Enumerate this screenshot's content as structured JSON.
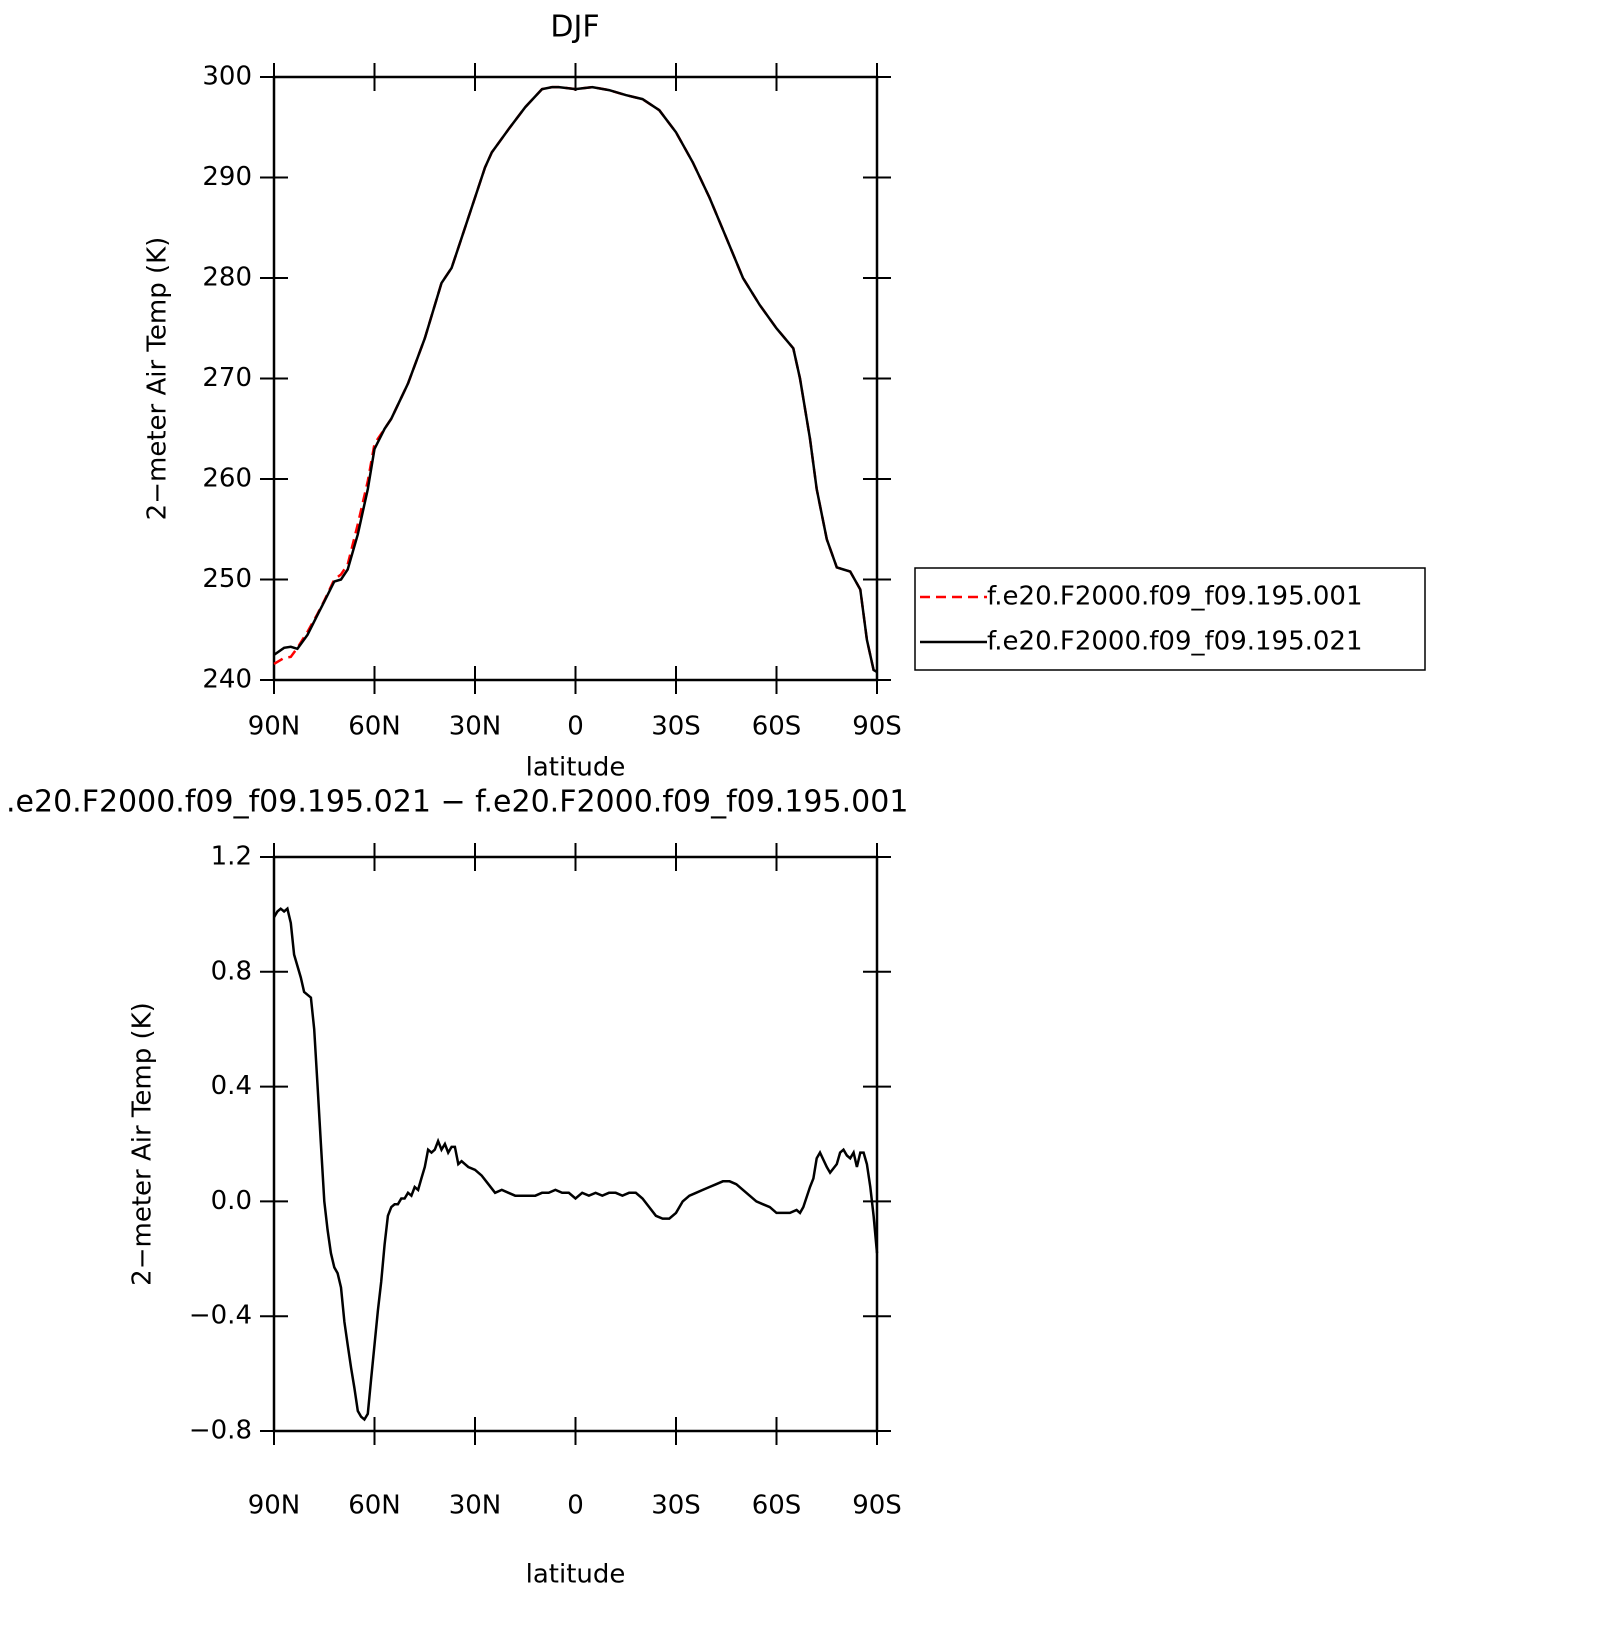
{
  "chart_data": [
    {
      "type": "line",
      "title": "DJF",
      "xlabel": "latitude",
      "ylabel": "2−meter Air Temp (K)",
      "xlim": [
        90,
        -90
      ],
      "xticks": [
        {
          "value": 90,
          "label": "90N"
        },
        {
          "value": 60,
          "label": "60N"
        },
        {
          "value": 30,
          "label": "30N"
        },
        0,
        {
          "value": -30,
          "label": "30S"
        },
        {
          "value": -60,
          "label": "60S"
        },
        {
          "value": -90,
          "label": "90S"
        }
      ],
      "ylim": [
        240,
        300
      ],
      "yticks": [
        240,
        250,
        260,
        270,
        280,
        290,
        300
      ],
      "legend": "right",
      "x": [
        90,
        87,
        85,
        83,
        80,
        77,
        75,
        72,
        70,
        68,
        65,
        62,
        60,
        57,
        55,
        50,
        45,
        40,
        37,
        35,
        30,
        27,
        25,
        20,
        15,
        10,
        7,
        5,
        0,
        -5,
        -10,
        -15,
        -20,
        -25,
        -30,
        -35,
        -40,
        -45,
        -50,
        -55,
        -60,
        -65,
        -67,
        -70,
        -72,
        -75,
        -78,
        -80,
        -82,
        -85,
        -87,
        -89,
        -90
      ],
      "series": [
        {
          "name": "f.e20.F2000.f09_f09.195.001",
          "color": "#ff0000",
          "linestyle": "dashed",
          "values": [
            241.6,
            242.2,
            242.3,
            243.2,
            244.8,
            246.6,
            247.9,
            250,
            250.5,
            251.5,
            255.5,
            259.8,
            263.5,
            265,
            266,
            269.5,
            274,
            279.5,
            281,
            283,
            288,
            291,
            292.5,
            294.8,
            297,
            298.8,
            299,
            299,
            298.8,
            299,
            298.7,
            298.2,
            297.8,
            296.7,
            294.5,
            291.5,
            288,
            284,
            280,
            277.3,
            275,
            273,
            270,
            264,
            259,
            254,
            251.2,
            251,
            250.8,
            249,
            244,
            241,
            240.8
          ]
        },
        {
          "name": "f.e20.F2000.f09_f09.195.021",
          "color": "#000000",
          "linestyle": "solid",
          "values": [
            242.5,
            243.2,
            243.3,
            243.1,
            244.5,
            246.5,
            247.8,
            249.8,
            250,
            251,
            254.5,
            259,
            263,
            265,
            266,
            269.5,
            274,
            279.5,
            281,
            283,
            288,
            291,
            292.5,
            294.8,
            297,
            298.8,
            299,
            299,
            298.8,
            299,
            298.7,
            298.2,
            297.8,
            296.7,
            294.5,
            291.5,
            288,
            284,
            280,
            277.3,
            275,
            273,
            270,
            264,
            259,
            254,
            251.2,
            251,
            250.8,
            249,
            244,
            241,
            240.8
          ]
        }
      ]
    },
    {
      "type": "line",
      "title": ".e20.F2000.f09_f09.195.021 − f.e20.F2000.f09_f09.195.001",
      "xlabel": "latitude",
      "ylabel": "2−meter Air Temp (K)",
      "xlim": [
        90,
        -90
      ],
      "xticks": [
        {
          "value": 90,
          "label": "90N"
        },
        {
          "value": 60,
          "label": "60N"
        },
        {
          "value": 30,
          "label": "30N"
        },
        0,
        {
          "value": -30,
          "label": "30S"
        },
        {
          "value": -60,
          "label": "60S"
        },
        {
          "value": -90,
          "label": "90S"
        }
      ],
      "ylim": [
        -0.8,
        1.2
      ],
      "yticks": [
        {
          "value": -0.8,
          "label": "−0.8"
        },
        {
          "value": -0.4,
          "label": "−0.4"
        },
        {
          "value": 0,
          "label": "0.0"
        },
        0.4,
        0.8,
        1.2
      ],
      "x": [
        90,
        89,
        88,
        87,
        86,
        85,
        84,
        82,
        81,
        79,
        78,
        77,
        76,
        75,
        74,
        73,
        72,
        71,
        70,
        69,
        68,
        67,
        66,
        65,
        64,
        63,
        62,
        61,
        60,
        59,
        58,
        57,
        56,
        55,
        54,
        53,
        52,
        51,
        50,
        49,
        48,
        47,
        46,
        45,
        44,
        43,
        42,
        41,
        40,
        39,
        38,
        37,
        36,
        35,
        34,
        33,
        32,
        30,
        28,
        26,
        24,
        22,
        20,
        18,
        16,
        14,
        12,
        10,
        8,
        6,
        4,
        2,
        0,
        -2,
        -4,
        -6,
        -8,
        -10,
        -12,
        -14,
        -16,
        -18,
        -20,
        -22,
        -24,
        -26,
        -28,
        -30,
        -32,
        -34,
        -36,
        -38,
        -40,
        -42,
        -44,
        -46,
        -48,
        -50,
        -52,
        -54,
        -56,
        -58,
        -60,
        -62,
        -64,
        -66,
        -67,
        -68,
        -70,
        -71,
        -72,
        -73,
        -75,
        -76,
        -78,
        -79,
        -80,
        -81,
        -82,
        -83,
        -84,
        -85,
        -86,
        -87,
        -88,
        -89,
        -90
      ],
      "series": [
        {
          "color": "#000000",
          "linestyle": "solid",
          "values": [
            0.99,
            1.01,
            1.02,
            1.01,
            1.02,
            0.97,
            0.86,
            0.78,
            0.73,
            0.71,
            0.6,
            0.4,
            0.2,
            0.0,
            -0.1,
            -0.18,
            -0.23,
            -0.25,
            -0.3,
            -0.42,
            -0.5,
            -0.58,
            -0.65,
            -0.73,
            -0.75,
            -0.76,
            -0.74,
            -0.62,
            -0.5,
            -0.38,
            -0.28,
            -0.15,
            -0.05,
            -0.02,
            -0.01,
            -0.01,
            0.01,
            0.01,
            0.03,
            0.02,
            0.05,
            0.04,
            0.08,
            0.12,
            0.18,
            0.17,
            0.18,
            0.21,
            0.18,
            0.2,
            0.17,
            0.19,
            0.19,
            0.13,
            0.14,
            0.13,
            0.12,
            0.11,
            0.09,
            0.06,
            0.03,
            0.04,
            0.03,
            0.02,
            0.02,
            0.02,
            0.02,
            0.03,
            0.03,
            0.04,
            0.03,
            0.03,
            0.01,
            0.03,
            0.02,
            0.03,
            0.02,
            0.03,
            0.03,
            0.02,
            0.03,
            0.03,
            0.01,
            -0.02,
            -0.05,
            -0.06,
            -0.06,
            -0.04,
            0.0,
            0.02,
            0.03,
            0.04,
            0.05,
            0.06,
            0.07,
            0.07,
            0.06,
            0.04,
            0.02,
            0.0,
            -0.01,
            -0.02,
            -0.04,
            -0.04,
            -0.04,
            -0.03,
            -0.04,
            -0.02,
            0.05,
            0.08,
            0.15,
            0.17,
            0.12,
            0.1,
            0.13,
            0.17,
            0.18,
            0.16,
            0.15,
            0.17,
            0.12,
            0.17,
            0.17,
            0.13,
            0.05,
            -0.05,
            -0.18
          ]
        }
      ]
    }
  ]
}
